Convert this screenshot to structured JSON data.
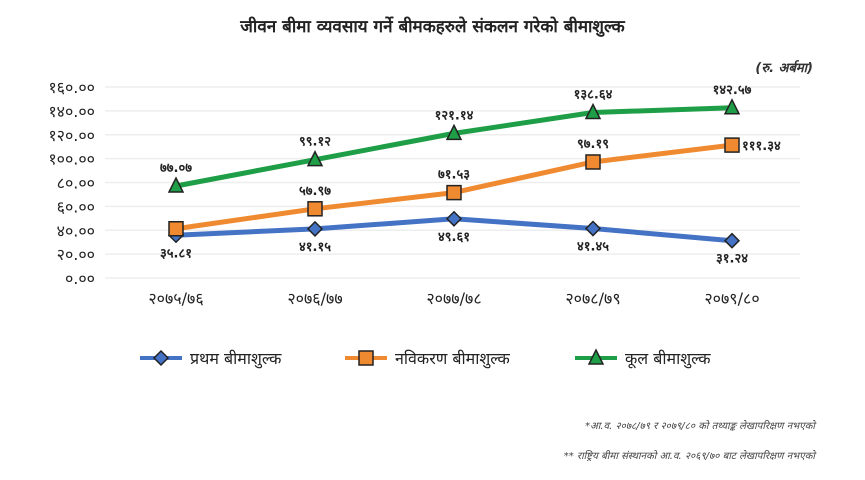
{
  "chart_data": {
    "type": "line",
    "title": "जीवन बीमा व्यवसाय गर्ने बीमकहरुले संकलन गरेको बीमाशुल्क",
    "unit_label": "(रु. अर्बमा)",
    "categories": [
      "२०७५/७६",
      "२०७६/७७",
      "२०७७/७८",
      "२०७८/७९",
      "२०७९/८०"
    ],
    "ylim": [
      0,
      160
    ],
    "yticks": [
      0,
      20,
      40,
      60,
      80,
      100,
      120,
      140,
      160
    ],
    "ytick_labels": [
      "०.००",
      "२०.००",
      "४०.००",
      "६०.००",
      "८०.००",
      "१००.००",
      "१२०.००",
      "१४०.००",
      "१६०.००"
    ],
    "grid": true,
    "legend_position": "bottom",
    "series": [
      {
        "name": "प्रथम बीमाशुल्क",
        "color": "#4472c4",
        "marker": "diamond",
        "values": [
          35.81,
          41.15,
          49.61,
          41.45,
          31.24
        ],
        "labels": [
          "३५.८१",
          "४१.१५",
          "४९.६१",
          "४१.४५",
          "३१.२४"
        ],
        "label_pos": "below"
      },
      {
        "name": "नविकरण बीमाशुल्क",
        "color": "#f08a30",
        "marker": "square",
        "values": [
          41.26,
          57.97,
          71.53,
          97.19,
          111.34
        ],
        "labels": [
          null,
          "५७.९७",
          "७१.५३",
          "९७.१९",
          "१११.३४"
        ],
        "label_pos": "above"
      },
      {
        "name": "कूल बीमाशुल्क",
        "color": "#1e9e46",
        "marker": "triangle",
        "values": [
          77.07,
          99.12,
          121.14,
          138.64,
          142.57
        ],
        "labels": [
          "७७.०७",
          "९९.१२",
          "१२१.१४",
          "१३८.६४",
          "१४२.५७"
        ],
        "label_pos": "above"
      }
    ]
  },
  "notes": [
    "*आ.व. २०७८/७९ र २०७९/८० को तथ्याङ्क लेखापरिक्षण नभएको",
    "** राष्ट्रिय बीमा संस्थानको आ.व. २०६९/७० बाट लेखापरिक्षण नभएको"
  ]
}
